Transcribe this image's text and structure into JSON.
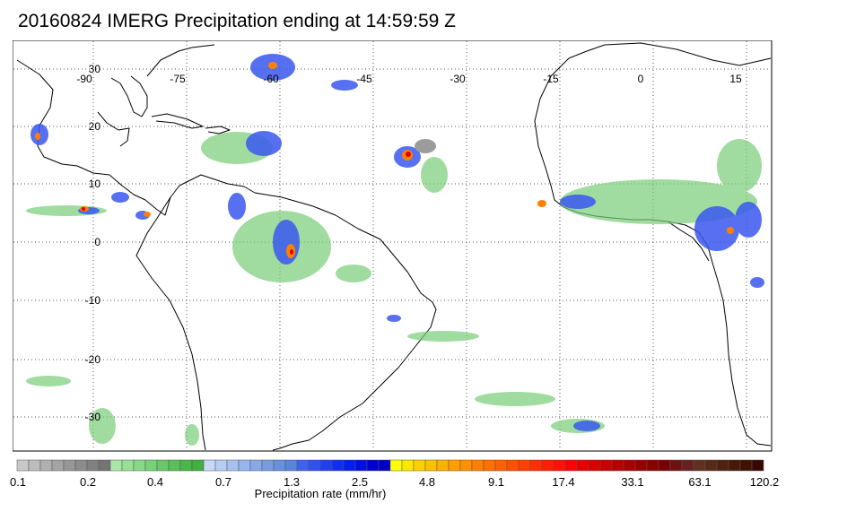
{
  "title": "20160824 IMERG Precipitation ending at 14:59:59 Z",
  "map": {
    "lon_labels": [
      "-90",
      "-75",
      "-60",
      "-45",
      "-30",
      "-15",
      "0",
      "15"
    ],
    "lat_labels": [
      "30",
      "20",
      "10",
      "0",
      "-10",
      "-20",
      "-30"
    ],
    "grid": "dotted",
    "coastline_color": "#000000"
  },
  "colorbar": {
    "title": "Precipitation rate (mm/hr)",
    "labels": [
      "0.1",
      "0.2",
      "0.4",
      "0.7",
      "1.3",
      "2.5",
      "4.8",
      "9.1",
      "17.4",
      "33.1",
      "63.1",
      "120.2"
    ],
    "colors": [
      "#c8c8c8",
      "#bcbcbc",
      "#b0b0b0",
      "#a4a4a4",
      "#989898",
      "#8c8c8c",
      "#808080",
      "#747474",
      "#a8e6a8",
      "#98e098",
      "#88d888",
      "#78d078",
      "#68c868",
      "#58c058",
      "#48b848",
      "#40b040",
      "#c8d8f8",
      "#b8ccf4",
      "#a8c0f0",
      "#98b4ec",
      "#88a8e8",
      "#789ce4",
      "#6890e0",
      "#5884dc",
      "#4060f0",
      "#3050f0",
      "#2040f0",
      "#1030f0",
      "#0020f0",
      "#0010e0",
      "#0000d0",
      "#0000c0",
      "#ffff00",
      "#ffe800",
      "#ffd000",
      "#ffc000",
      "#ffb000",
      "#ffa000",
      "#ff9000",
      "#ff8000",
      "#ff7000",
      "#ff6000",
      "#ff5000",
      "#ff4000",
      "#ff3000",
      "#ff2000",
      "#ff1000",
      "#ff0000",
      "#e80000",
      "#d80000",
      "#c80000",
      "#b80000",
      "#a80000",
      "#980000",
      "#880000",
      "#780000",
      "#701010",
      "#682020",
      "#603020",
      "#582818",
      "#502010",
      "#481808",
      "#401000",
      "#380800"
    ]
  }
}
